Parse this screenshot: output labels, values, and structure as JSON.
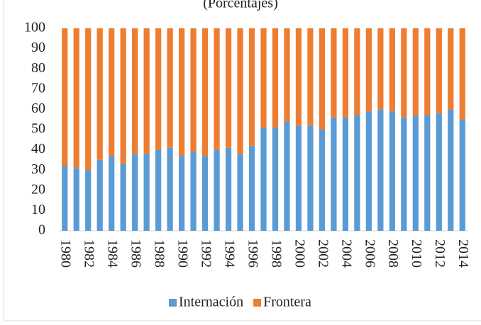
{
  "chart_data": {
    "type": "stacked-bar",
    "subtitle": "(Porcentajes)",
    "categories": [
      "1980",
      null,
      "1982",
      null,
      "1984",
      null,
      "1986",
      null,
      "1988",
      null,
      "1990",
      null,
      "1992",
      null,
      "1994",
      null,
      "1996",
      null,
      "1998",
      null,
      "2000",
      null,
      "2002",
      null,
      "2004",
      null,
      "2006",
      null,
      "2008",
      null,
      "2010",
      null,
      "2012",
      null,
      "2014"
    ],
    "series": [
      {
        "name": "Internación",
        "color": "#5b9bd5",
        "values": [
          32,
          31,
          30,
          35,
          37,
          33,
          38,
          38,
          40,
          41,
          37,
          39,
          37,
          40,
          41,
          38,
          42,
          51,
          51,
          54,
          52,
          52,
          50,
          56,
          56,
          57,
          59,
          60,
          59,
          56,
          57,
          57,
          58,
          60,
          55
        ]
      },
      {
        "name": "Frontera",
        "color": "#ed7d31",
        "values": [
          68,
          69,
          70,
          65,
          63,
          67,
          62,
          62,
          60,
          59,
          63,
          61,
          63,
          60,
          59,
          62,
          58,
          49,
          49,
          46,
          48,
          48,
          50,
          44,
          44,
          43,
          41,
          40,
          41,
          44,
          43,
          43,
          42,
          40,
          45
        ]
      }
    ],
    "ylim": [
      0,
      100
    ],
    "yticks": [
      0,
      10,
      20,
      30,
      40,
      50,
      60,
      70,
      80,
      90,
      100
    ],
    "legend": "bottom"
  }
}
